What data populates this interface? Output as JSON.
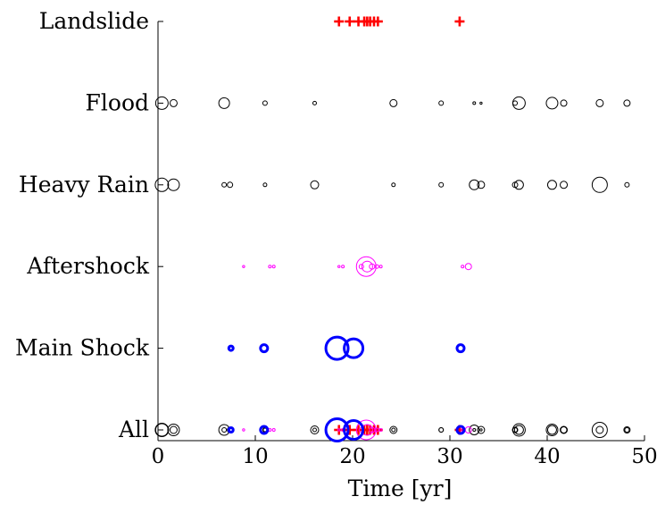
{
  "chart_data": {
    "type": "scatter",
    "title": "",
    "xlabel": "Time [yr]",
    "ylabel": "",
    "xlim": [
      0,
      50
    ],
    "xticks": [
      0,
      10,
      20,
      30,
      40,
      50
    ],
    "categories": [
      "All",
      "Main Shock",
      "Aftershock",
      "Heavy Rain",
      "Flood",
      "Landslide"
    ],
    "grid": false,
    "series": [
      {
        "category": "Landslide",
        "marker": "plus",
        "color": "#ff0000",
        "x": [
          18.6,
          19.7,
          20.6,
          21.2,
          21.5,
          21.8,
          22.2,
          22.6,
          31.0
        ]
      },
      {
        "category": "Flood",
        "marker": "circle",
        "color": "#000000",
        "points": [
          {
            "x": 0.4,
            "size": 7
          },
          {
            "x": 1.6,
            "size": 4
          },
          {
            "x": 6.8,
            "size": 6
          },
          {
            "x": 11.0,
            "size": 2.5
          },
          {
            "x": 16.1,
            "size": 2
          },
          {
            "x": 24.2,
            "size": 4
          },
          {
            "x": 29.1,
            "size": 2.5
          },
          {
            "x": 32.5,
            "size": 1.5
          },
          {
            "x": 33.2,
            "size": 0.8
          },
          {
            "x": 36.7,
            "size": 2.5
          },
          {
            "x": 37.1,
            "size": 7
          },
          {
            "x": 40.5,
            "size": 6.5
          },
          {
            "x": 41.7,
            "size": 3.5
          },
          {
            "x": 45.4,
            "size": 4
          },
          {
            "x": 48.2,
            "size": 3.5
          }
        ]
      },
      {
        "category": "Heavy Rain",
        "marker": "circle",
        "color": "#000000",
        "points": [
          {
            "x": 0.4,
            "size": 7.5
          },
          {
            "x": 1.6,
            "size": 6.5
          },
          {
            "x": 6.8,
            "size": 2.5
          },
          {
            "x": 7.4,
            "size": 3
          },
          {
            "x": 11.0,
            "size": 2
          },
          {
            "x": 16.1,
            "size": 4.5
          },
          {
            "x": 24.2,
            "size": 2
          },
          {
            "x": 29.1,
            "size": 2.5
          },
          {
            "x": 32.5,
            "size": 5.5
          },
          {
            "x": 33.2,
            "size": 4
          },
          {
            "x": 36.7,
            "size": 3
          },
          {
            "x": 37.1,
            "size": 5
          },
          {
            "x": 40.5,
            "size": 5
          },
          {
            "x": 41.7,
            "size": 4
          },
          {
            "x": 45.4,
            "size": 8.5
          },
          {
            "x": 48.2,
            "size": 2.5
          }
        ]
      },
      {
        "category": "Aftershock",
        "marker": "circle",
        "color": "#ff00ff",
        "points": [
          {
            "x": 8.8,
            "size": 1.2
          },
          {
            "x": 11.5,
            "size": 1.5
          },
          {
            "x": 11.9,
            "size": 1.5
          },
          {
            "x": 18.6,
            "size": 1.2
          },
          {
            "x": 19.0,
            "size": 1.5
          },
          {
            "x": 20.9,
            "size": 2.5
          },
          {
            "x": 21.4,
            "size": 11
          },
          {
            "x": 21.5,
            "size": 6
          },
          {
            "x": 22.0,
            "size": 3
          },
          {
            "x": 22.5,
            "size": 2
          },
          {
            "x": 22.9,
            "size": 1.5
          },
          {
            "x": 31.3,
            "size": 1.5
          },
          {
            "x": 31.9,
            "size": 3.5
          }
        ]
      },
      {
        "category": "Main Shock",
        "marker": "circle",
        "color": "#0000ff",
        "points": [
          {
            "x": 7.5,
            "size": 2.5
          },
          {
            "x": 10.9,
            "size": 4
          },
          {
            "x": 18.4,
            "size": 12.5
          },
          {
            "x": 20.1,
            "size": 10.5
          },
          {
            "x": 31.1,
            "size": 4
          }
        ]
      }
    ]
  }
}
